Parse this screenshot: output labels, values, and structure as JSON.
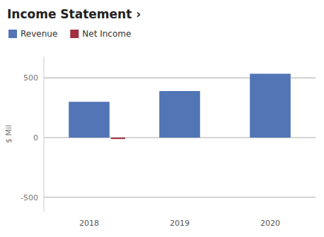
{
  "chart_data": {
    "type": "bar",
    "title": "Income Statement ›",
    "categories": [
      "2018",
      "2019",
      "2020"
    ],
    "series": [
      {
        "name": "Revenue",
        "color": "#5175b5",
        "values": [
          300,
          390,
          535
        ]
      },
      {
        "name": "Net Income",
        "color": "#a03040",
        "values": [
          -12,
          null,
          null
        ]
      }
    ],
    "y_label": "$ Mil",
    "ylim": [
      -620,
      680
    ],
    "yticks": [
      500,
      0,
      -500
    ],
    "grid": true,
    "legend": "top-left"
  }
}
